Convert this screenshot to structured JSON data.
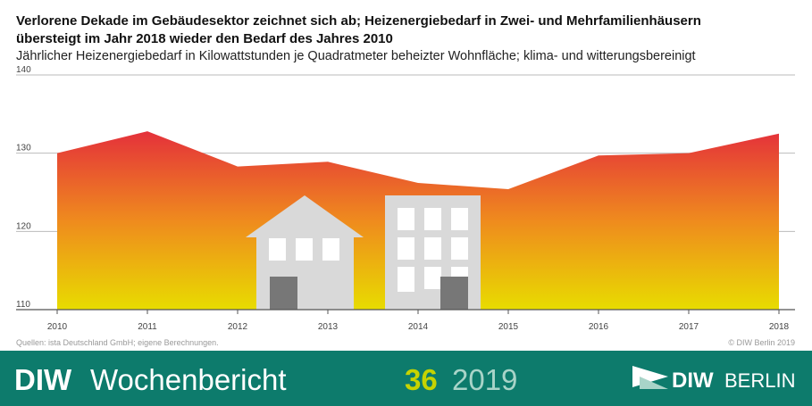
{
  "chart_data": {
    "type": "area",
    "title": "Verlorene Dekade im Gebäudesektor zeichnet sich ab; Heizenergiebedarf in Zwei- und Mehrfamilienhäusern",
    "title_line2": "übersteigt im Jahr 2018 wieder den Bedarf des Jahres 2010",
    "subtitle": "Jährlicher Heizenergiebedarf in Kilowattstunden je Quadratmeter beheizter Wohnfläche; klima- und witterungsbereinigt",
    "categories": [
      "2010",
      "2011",
      "2012",
      "2013",
      "2014",
      "2015",
      "2016",
      "2017",
      "2018"
    ],
    "values": [
      130.0,
      132.8,
      128.3,
      128.9,
      126.2,
      125.4,
      129.7,
      130.0,
      132.5
    ],
    "colors": [
      "#e4303b",
      "#ef8a1e",
      "#e8dc00"
    ],
    "ylim": [
      110,
      140
    ],
    "yticks": [
      110,
      120,
      130,
      140
    ],
    "grid": true,
    "source": "Quellen: ista Deutschland GmbH; eigene Berechnungen.",
    "copyright": "© DIW Berlin 2019"
  },
  "footer": {
    "brand": "DIW",
    "publication": "Wochenbericht",
    "issue": "36",
    "year": "2019",
    "logo_left": "DIW",
    "logo_right": "BERLIN"
  }
}
